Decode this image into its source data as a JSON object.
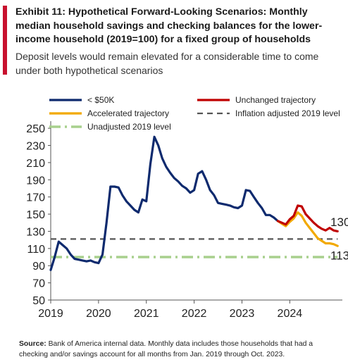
{
  "header": {
    "title": "Exhibit 11: Hypothetical Forward-Looking Scenarios: Monthly median household savings and checking balances for the lower-income household (2019=100) for a fixed group of households",
    "subtitle": "Deposit levels would remain elevated for a considerable time to come under both hypothetical scenarios"
  },
  "footer": {
    "source_label": "Source:",
    "source_text": "Bank of America internal data. Monthly data includes those households that had a checking and/or savings account for all months from Jan. 2019 through Oct. 2023."
  },
  "colors": {
    "accent": "#c8102e",
    "main_series": "#0e2a6e",
    "unchanged": "#c00000",
    "accelerated": "#f2a900",
    "inflation_line": "#555555",
    "unadjusted_line": "#a8d08d"
  },
  "chart_data": {
    "type": "line",
    "x_ticks": [
      "2019",
      "2020",
      "2021",
      "2022",
      "2023",
      "2024"
    ],
    "y_ticks": [
      50,
      70,
      90,
      110,
      130,
      150,
      170,
      190,
      210,
      230,
      250
    ],
    "ylim": [
      50,
      255
    ],
    "xlim": [
      2019.0,
      2025.1
    ],
    "grid": false,
    "legend_position": "top",
    "legend": [
      {
        "label": "< $50K",
        "key": "main",
        "style": "solid"
      },
      {
        "label": "Unchanged trajectory",
        "key": "unchanged",
        "style": "solid"
      },
      {
        "label": "Accelerated trajectory",
        "key": "accelerated",
        "style": "solid"
      },
      {
        "label": "Inflation adjusted 2019 level",
        "key": "inflation",
        "style": "dashed"
      },
      {
        "label": "Unadjusted 2019 level",
        "key": "unadjusted",
        "style": "dashdot"
      }
    ],
    "series": [
      {
        "name": "< $50K",
        "key": "main",
        "x": [
          2019.0,
          2019.083,
          2019.167,
          2019.25,
          2019.333,
          2019.417,
          2019.5,
          2019.583,
          2019.667,
          2019.75,
          2019.833,
          2019.917,
          2020.0,
          2020.083,
          2020.167,
          2020.25,
          2020.333,
          2020.417,
          2020.5,
          2020.583,
          2020.667,
          2020.75,
          2020.833,
          2020.917,
          2021.0,
          2021.083,
          2021.167,
          2021.25,
          2021.333,
          2021.417,
          2021.5,
          2021.583,
          2021.667,
          2021.75,
          2021.833,
          2021.917,
          2022.0,
          2022.083,
          2022.167,
          2022.25,
          2022.333,
          2022.417,
          2022.5,
          2022.583,
          2022.667,
          2022.75,
          2022.833,
          2022.917,
          2023.0,
          2023.083,
          2023.167,
          2023.25,
          2023.333,
          2023.417,
          2023.5,
          2023.583,
          2023.667,
          2023.75
        ],
        "y": [
          85,
          100,
          118,
          114,
          110,
          103,
          98,
          97,
          96,
          95,
          96,
          94,
          93,
          103,
          140,
          182,
          182,
          181,
          172,
          165,
          160,
          155,
          152,
          167,
          165,
          208,
          240,
          230,
          215,
          205,
          198,
          192,
          188,
          183,
          180,
          175,
          178,
          197,
          200,
          190,
          178,
          172,
          163,
          162,
          161,
          160,
          158,
          157,
          160,
          178,
          177,
          170,
          163,
          157,
          149,
          149,
          146,
          142
        ]
      },
      {
        "name": "Unchanged trajectory",
        "key": "unchanged",
        "x": [
          2023.75,
          2023.833,
          2023.917,
          2024.0,
          2024.083,
          2024.167,
          2024.25,
          2024.333,
          2024.417,
          2024.5,
          2024.583,
          2024.667,
          2024.75,
          2024.833,
          2024.917,
          2025.0
        ],
        "y": [
          142,
          140,
          138,
          144,
          148,
          160,
          159,
          150,
          145,
          140,
          136,
          133,
          131,
          134,
          131,
          130
        ]
      },
      {
        "name": "Accelerated trajectory",
        "key": "accelerated",
        "x": [
          2023.75,
          2023.833,
          2023.917,
          2024.0,
          2024.083,
          2024.167,
          2024.25,
          2024.333,
          2024.417,
          2024.5,
          2024.583,
          2024.667,
          2024.75,
          2024.833,
          2024.917,
          2025.0
        ],
        "y": [
          142,
          139,
          136,
          141,
          145,
          152,
          148,
          140,
          134,
          128,
          122,
          119,
          116,
          116,
          115,
          113
        ]
      },
      {
        "name": "Inflation adjusted 2019 level",
        "key": "inflation",
        "x": [
          2019.0,
          2025.0
        ],
        "y": [
          121,
          121
        ]
      },
      {
        "name": "Unadjusted 2019 level",
        "key": "unadjusted",
        "x": [
          2019.0,
          2025.0
        ],
        "y": [
          100,
          100
        ]
      }
    ],
    "annotations": [
      {
        "text": "130",
        "x": 2024.85,
        "y": 136
      },
      {
        "text": "113",
        "x": 2024.85,
        "y": 97
      }
    ]
  }
}
